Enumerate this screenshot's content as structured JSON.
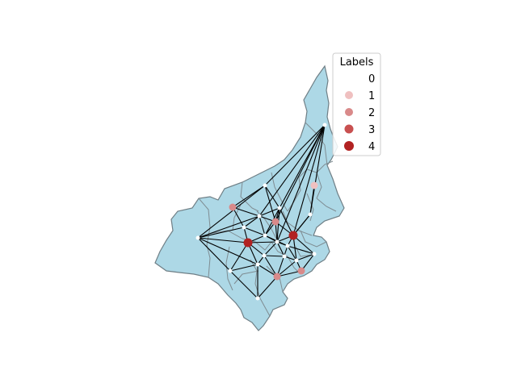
{
  "legend": {
    "title": "Labels",
    "entries": [
      {
        "label": "0",
        "color": "#ffffff"
      },
      {
        "label": "1",
        "color": "#efc0c0"
      },
      {
        "label": "2",
        "color": "#d98a8a"
      },
      {
        "label": "3",
        "color": "#c85050"
      },
      {
        "label": "4",
        "color": "#b22222"
      }
    ]
  },
  "map": {
    "fill_color": "#add8e6",
    "border_color": "#6f7f86",
    "edge_color": "#000000"
  }
}
